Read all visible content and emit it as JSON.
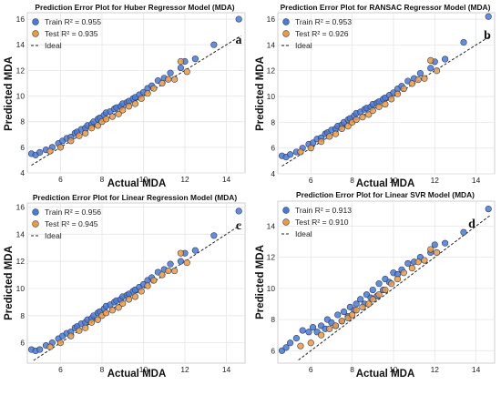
{
  "chart_data": [
    {
      "type": "scatter",
      "panel_label": "a",
      "title": "Prediction Error Plot for Huber Regressor Model (MDA)",
      "xlabel": "Actual MDA",
      "ylabel": "Predicted MDA",
      "xlim": [
        4.4,
        14.9
      ],
      "ylim": [
        4,
        16.5
      ],
      "xticks": [
        "6",
        "8",
        "10",
        "12",
        "14"
      ],
      "yticks": [
        "4",
        "6",
        "8",
        "10",
        "12",
        "14",
        "16"
      ],
      "grid": true,
      "legend_position": "top-left",
      "legend": [
        "Train R² = 0.955",
        "Test R² = 0.935",
        "Ideal"
      ],
      "colors": {
        "train": "#4a79d6",
        "test": "#f09a3a",
        "ideal": "#222222"
      },
      "series": [
        {
          "name": "Train R² = 0.955",
          "x": [
            4.6,
            4.8,
            5.0,
            5.3,
            5.6,
            5.9,
            6.1,
            6.3,
            6.5,
            6.7,
            6.8,
            7.0,
            7.2,
            7.3,
            7.5,
            7.6,
            7.8,
            7.9,
            8.1,
            8.2,
            8.4,
            8.6,
            8.7,
            8.9,
            9.0,
            9.2,
            9.3,
            9.5,
            9.6,
            9.8,
            10.0,
            10.2,
            10.4,
            10.7,
            11.0,
            11.3,
            11.8,
            12.0,
            12.5,
            13.4,
            14.6
          ],
          "y": [
            5.5,
            5.4,
            5.6,
            5.8,
            6.0,
            6.3,
            6.5,
            6.7,
            6.8,
            7.1,
            7.2,
            7.4,
            7.5,
            7.7,
            7.8,
            8.0,
            8.2,
            8.3,
            8.5,
            8.7,
            8.8,
            9.0,
            9.1,
            9.2,
            9.4,
            9.5,
            9.6,
            9.8,
            9.9,
            10.1,
            10.3,
            10.6,
            10.8,
            11.2,
            11.4,
            11.8,
            12.2,
            12.7,
            12.9,
            14.0,
            16.0
          ]
        },
        {
          "name": "Test R² = 0.935",
          "x": [
            5.5,
            6.0,
            6.5,
            6.9,
            7.2,
            7.5,
            7.8,
            8.0,
            8.2,
            8.5,
            8.8,
            9.0,
            9.3,
            9.6,
            9.9,
            10.2,
            10.5,
            10.9,
            11.2,
            11.5,
            11.8,
            12.1
          ],
          "y": [
            5.7,
            6.0,
            6.5,
            6.9,
            7.1,
            7.5,
            7.7,
            8.0,
            8.2,
            8.4,
            8.6,
            8.9,
            9.2,
            9.4,
            9.8,
            10.2,
            10.6,
            11.0,
            11.3,
            11.3,
            12.7,
            11.9
          ]
        }
      ]
    },
    {
      "type": "scatter",
      "panel_label": "b",
      "title": "Prediction Error Plot for RANSAC Regressor Model (MDA)",
      "xlabel": "Actual MDA",
      "ylabel": "Predicted MDA",
      "xlim": [
        4.4,
        14.9
      ],
      "ylim": [
        4,
        16.5
      ],
      "xticks": [
        "6",
        "8",
        "10",
        "12",
        "14"
      ],
      "yticks": [
        "4",
        "6",
        "8",
        "10",
        "12",
        "14",
        "16"
      ],
      "grid": true,
      "legend_position": "top-left",
      "legend": [
        "Train R² = 0.953",
        "Test R² = 0.926",
        "Ideal"
      ],
      "colors": {
        "train": "#4a79d6",
        "test": "#f09a3a",
        "ideal": "#222222"
      },
      "series": [
        {
          "name": "Train R² = 0.953",
          "x": [
            4.6,
            4.8,
            5.0,
            5.3,
            5.6,
            5.9,
            6.1,
            6.3,
            6.5,
            6.7,
            6.8,
            7.0,
            7.2,
            7.3,
            7.5,
            7.6,
            7.8,
            7.9,
            8.1,
            8.2,
            8.4,
            8.6,
            8.7,
            8.9,
            9.0,
            9.2,
            9.3,
            9.5,
            9.6,
            9.8,
            10.0,
            10.2,
            10.4,
            10.7,
            11.0,
            11.3,
            11.8,
            12.0,
            12.5,
            13.4,
            14.6
          ],
          "y": [
            5.4,
            5.3,
            5.5,
            5.7,
            6.0,
            6.3,
            6.4,
            6.7,
            6.8,
            7.1,
            7.2,
            7.4,
            7.5,
            7.7,
            7.8,
            8.0,
            8.2,
            8.3,
            8.5,
            8.7,
            8.8,
            9.0,
            9.1,
            9.2,
            9.4,
            9.5,
            9.6,
            9.8,
            9.9,
            10.1,
            10.3,
            10.6,
            10.8,
            11.2,
            11.4,
            11.8,
            12.2,
            12.7,
            12.9,
            14.2,
            16.2
          ]
        },
        {
          "name": "Test R² = 0.926",
          "x": [
            5.5,
            6.0,
            6.5,
            6.9,
            7.2,
            7.5,
            7.8,
            8.0,
            8.2,
            8.5,
            8.8,
            9.0,
            9.3,
            9.6,
            9.9,
            10.2,
            10.5,
            10.9,
            11.2,
            11.5,
            11.8,
            12.1
          ],
          "y": [
            5.7,
            6.0,
            6.5,
            6.9,
            7.1,
            7.5,
            7.7,
            8.0,
            8.2,
            8.4,
            8.6,
            8.9,
            9.2,
            9.4,
            9.8,
            10.2,
            10.6,
            11.0,
            11.3,
            11.4,
            12.8,
            12.0
          ]
        }
      ]
    },
    {
      "type": "scatter",
      "panel_label": "c",
      "title": "Prediction Error Plot for Linear Regression Model (MDA)",
      "xlabel": "Actual MDA",
      "ylabel": "Predicted MDA",
      "xlim": [
        4.4,
        14.9
      ],
      "ylim": [
        4.5,
        16.3
      ],
      "xticks": [
        "6",
        "8",
        "10",
        "12",
        "14"
      ],
      "yticks": [
        "6",
        "8",
        "10",
        "12",
        "14",
        "16"
      ],
      "grid": true,
      "legend_position": "top-left",
      "legend": [
        "Train R² = 0.956",
        "Test R² = 0.945",
        "Ideal"
      ],
      "colors": {
        "train": "#4a79d6",
        "test": "#f09a3a",
        "ideal": "#222222"
      },
      "series": [
        {
          "name": "Train R² = 0.956",
          "x": [
            4.6,
            4.8,
            5.0,
            5.3,
            5.6,
            5.9,
            6.1,
            6.3,
            6.5,
            6.7,
            6.8,
            7.0,
            7.2,
            7.3,
            7.5,
            7.6,
            7.8,
            7.9,
            8.1,
            8.2,
            8.4,
            8.6,
            8.7,
            8.9,
            9.0,
            9.2,
            9.3,
            9.5,
            9.6,
            9.8,
            10.0,
            10.2,
            10.4,
            10.7,
            11.0,
            11.3,
            11.8,
            12.0,
            12.5,
            13.4,
            14.6
          ],
          "y": [
            5.5,
            5.4,
            5.5,
            5.8,
            6.0,
            6.3,
            6.5,
            6.7,
            6.8,
            7.1,
            7.2,
            7.4,
            7.5,
            7.7,
            7.8,
            8.0,
            8.2,
            8.3,
            8.5,
            8.7,
            8.8,
            9.0,
            9.1,
            9.2,
            9.4,
            9.5,
            9.6,
            9.8,
            9.9,
            10.1,
            10.3,
            10.6,
            10.8,
            11.2,
            11.4,
            11.8,
            12.0,
            12.6,
            12.8,
            13.9,
            15.7
          ]
        },
        {
          "name": "Test R² = 0.945",
          "x": [
            5.5,
            6.0,
            6.5,
            6.9,
            7.2,
            7.5,
            7.8,
            8.0,
            8.2,
            8.5,
            8.8,
            9.0,
            9.3,
            9.6,
            9.9,
            10.2,
            10.5,
            10.9,
            11.2,
            11.5,
            11.8,
            12.1
          ],
          "y": [
            5.7,
            6.0,
            6.5,
            6.9,
            7.1,
            7.5,
            7.7,
            8.0,
            8.2,
            8.4,
            8.6,
            8.9,
            9.2,
            9.4,
            9.8,
            10.2,
            10.6,
            11.0,
            11.3,
            11.3,
            12.6,
            11.9
          ]
        }
      ]
    },
    {
      "type": "scatter",
      "panel_label": "d",
      "title": "Prediction Error Plot for Linear SVR Model (MDA)",
      "xlabel": "Actual MDA",
      "ylabel": "Predicted MDA",
      "xlim": [
        4.4,
        14.9
      ],
      "ylim": [
        5.2,
        15.6
      ],
      "xticks": [
        "6",
        "8",
        "10",
        "12",
        "14"
      ],
      "yticks": [
        "6",
        "8",
        "10",
        "12",
        "14"
      ],
      "grid": true,
      "legend_position": "top-left",
      "legend": [
        "Train R² = 0.913",
        "Test R² = 0.910",
        "Ideal"
      ],
      "colors": {
        "train": "#4a79d6",
        "test": "#f09a3a",
        "ideal": "#222222"
      },
      "series": [
        {
          "name": "Train R² = 0.913",
          "x": [
            4.6,
            4.8,
            5.0,
            5.3,
            5.6,
            5.9,
            6.1,
            6.3,
            6.5,
            6.7,
            6.8,
            7.0,
            7.2,
            7.3,
            7.5,
            7.6,
            7.8,
            7.9,
            8.1,
            8.2,
            8.4,
            8.6,
            8.7,
            8.9,
            9.0,
            9.2,
            9.3,
            9.5,
            9.6,
            9.8,
            10.0,
            10.2,
            10.4,
            10.7,
            11.0,
            11.3,
            11.8,
            12.0,
            12.5,
            13.4,
            14.6
          ],
          "y": [
            6.0,
            6.2,
            6.5,
            6.8,
            7.3,
            7.2,
            7.5,
            7.2,
            7.6,
            7.4,
            8.0,
            7.8,
            7.6,
            8.3,
            7.9,
            8.5,
            8.2,
            8.8,
            8.6,
            9.0,
            9.3,
            9.0,
            9.6,
            9.4,
            9.9,
            9.5,
            10.3,
            9.9,
            10.6,
            10.4,
            11.0,
            10.9,
            11.2,
            11.6,
            11.7,
            12.0,
            12.3,
            12.8,
            12.9,
            13.6,
            15.1
          ]
        },
        {
          "name": "Test R² = 0.910",
          "x": [
            5.5,
            6.0,
            6.5,
            6.9,
            7.2,
            7.5,
            7.8,
            8.0,
            8.2,
            8.5,
            8.8,
            9.0,
            9.3,
            9.6,
            9.9,
            10.2,
            10.5,
            10.9,
            11.2,
            11.5,
            11.8,
            12.1
          ],
          "y": [
            6.3,
            6.5,
            7.0,
            7.4,
            7.6,
            7.9,
            8.1,
            8.3,
            8.6,
            8.8,
            9.0,
            9.3,
            9.6,
            9.9,
            10.3,
            10.6,
            11.0,
            11.3,
            11.7,
            11.8,
            12.5,
            12.3
          ]
        }
      ]
    }
  ]
}
